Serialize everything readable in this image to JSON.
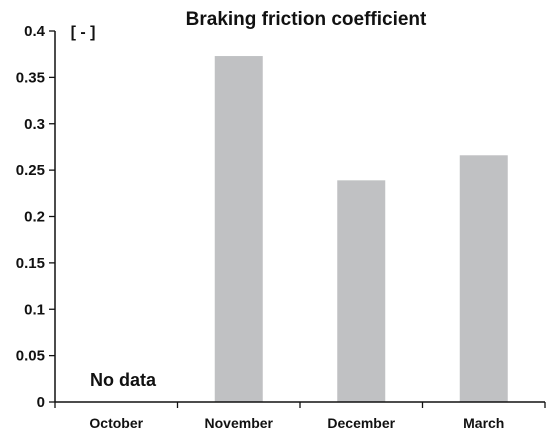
{
  "chart_data": {
    "type": "bar",
    "title": "Braking friction coefficient",
    "ylabel": "[ - ]",
    "xlabel": "",
    "categories": [
      "October",
      "November",
      "December",
      "March"
    ],
    "values": [
      null,
      0.373,
      0.239,
      0.266
    ],
    "ylim": [
      0,
      0.4
    ],
    "yticks": [
      "0",
      "0.05",
      "0.1",
      "0.15",
      "0.2",
      "0.25",
      "0.3",
      "0.35",
      "0.4"
    ],
    "annotation": "No data",
    "bar_color": "#c0c1c3",
    "grid": false
  }
}
